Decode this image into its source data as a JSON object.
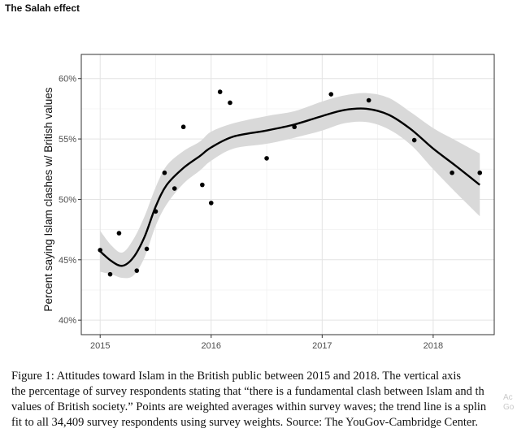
{
  "page": {
    "title": "The Salah effect"
  },
  "chart_data": {
    "type": "scatter",
    "ylabel": "Percent saying Islam clashes w/ British values",
    "xlabel": "",
    "x_ticks": [
      {
        "value": 2015,
        "label": "2015"
      },
      {
        "value": 2016,
        "label": "2016"
      },
      {
        "value": 2017,
        "label": "2017"
      },
      {
        "value": 2018,
        "label": "2018"
      }
    ],
    "y_ticks": [
      {
        "value": 40,
        "label": "40%"
      },
      {
        "value": 45,
        "label": "45%"
      },
      {
        "value": 50,
        "label": "50%"
      },
      {
        "value": 55,
        "label": "55%"
      },
      {
        "value": 60,
        "label": "60%"
      }
    ],
    "xlim": [
      2014.83,
      2018.55
    ],
    "ylim": [
      38.8,
      62.0
    ],
    "grid": true,
    "points": [
      {
        "x": 2015.0,
        "y": 45.8
      },
      {
        "x": 2015.09,
        "y": 43.8
      },
      {
        "x": 2015.17,
        "y": 47.2
      },
      {
        "x": 2015.33,
        "y": 44.1
      },
      {
        "x": 2015.42,
        "y": 45.9
      },
      {
        "x": 2015.5,
        "y": 49.0
      },
      {
        "x": 2015.58,
        "y": 52.2
      },
      {
        "x": 2015.67,
        "y": 50.9
      },
      {
        "x": 2015.75,
        "y": 56.0
      },
      {
        "x": 2015.92,
        "y": 51.2
      },
      {
        "x": 2016.0,
        "y": 49.7
      },
      {
        "x": 2016.08,
        "y": 58.9
      },
      {
        "x": 2016.17,
        "y": 58.0
      },
      {
        "x": 2016.5,
        "y": 53.4
      },
      {
        "x": 2016.75,
        "y": 56.0
      },
      {
        "x": 2017.08,
        "y": 58.7
      },
      {
        "x": 2017.42,
        "y": 58.2
      },
      {
        "x": 2017.83,
        "y": 54.9
      },
      {
        "x": 2018.17,
        "y": 52.2
      },
      {
        "x": 2018.42,
        "y": 52.2
      }
    ],
    "trend": {
      "x": [
        2015.0,
        2015.1,
        2015.2,
        2015.3,
        2015.4,
        2015.5,
        2015.6,
        2015.75,
        2015.9,
        2016.0,
        2016.2,
        2016.5,
        2016.75,
        2017.0,
        2017.2,
        2017.4,
        2017.6,
        2017.8,
        2018.0,
        2018.2,
        2018.42
      ],
      "y": [
        45.7,
        44.9,
        44.5,
        45.2,
        46.9,
        49.4,
        51.2,
        52.6,
        53.6,
        54.3,
        55.2,
        55.7,
        56.2,
        56.9,
        57.4,
        57.5,
        57.0,
        55.8,
        54.2,
        52.8,
        51.2
      ],
      "lower": [
        44.0,
        43.8,
        43.5,
        43.7,
        45.2,
        47.8,
        49.6,
        51.3,
        52.4,
        53.2,
        54.2,
        54.6,
        55.1,
        55.7,
        56.3,
        56.4,
        55.8,
        54.5,
        52.5,
        50.6,
        48.6
      ],
      "upper": [
        47.4,
        46.2,
        45.6,
        46.7,
        48.6,
        51.0,
        52.8,
        54.0,
        54.8,
        55.6,
        56.3,
        56.9,
        57.3,
        58.1,
        58.6,
        58.8,
        58.4,
        57.2,
        55.9,
        54.9,
        53.8
      ]
    },
    "band_color": "#d9d9d9",
    "line_color": "#000000",
    "point_color": "#000000"
  },
  "caption": {
    "lines": [
      "Figure 1:  Attitudes toward Islam in the British public between 2015 and 2018.  The vertical axis",
      "the percentage of survey respondents stating that “there is a fundamental clash between Islam and th",
      "values of British society.” Points are weighted averages within survey waves; the trend line is a splin",
      "fit to all 34,409 survey respondents using survey weights. Source: The YouGov-Cambridge Center."
    ]
  },
  "watermark": {
    "lines": [
      "Ac",
      "Go"
    ]
  }
}
